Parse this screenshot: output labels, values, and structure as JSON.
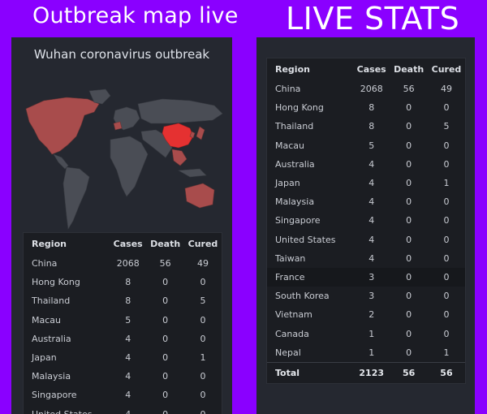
{
  "headings": {
    "left": "Outbreak map live",
    "right": "LIVE STATS"
  },
  "map": {
    "title": "Wuhan coronavirus outbreak",
    "colors": {
      "land": "#4a4d55",
      "affected": "#a84c4c",
      "focus": "#e53131"
    }
  },
  "table": {
    "headers": {
      "region": "Region",
      "cases": "Cases",
      "death": "Death",
      "cured": "Cured"
    },
    "rows": [
      {
        "region": "China",
        "cases": "2068",
        "death": "56",
        "cured": "49"
      },
      {
        "region": "Hong Kong",
        "cases": "8",
        "death": "0",
        "cured": "0"
      },
      {
        "region": "Thailand",
        "cases": "8",
        "death": "0",
        "cured": "5"
      },
      {
        "region": "Macau",
        "cases": "5",
        "death": "0",
        "cured": "0"
      },
      {
        "region": "Australia",
        "cases": "4",
        "death": "0",
        "cured": "0"
      },
      {
        "region": "Japan",
        "cases": "4",
        "death": "0",
        "cured": "1"
      },
      {
        "region": "Malaysia",
        "cases": "4",
        "death": "0",
        "cured": "0"
      },
      {
        "region": "Singapore",
        "cases": "4",
        "death": "0",
        "cured": "0"
      },
      {
        "region": "United States",
        "cases": "4",
        "death": "0",
        "cured": "0"
      },
      {
        "region": "Taiwan",
        "cases": "4",
        "death": "0",
        "cured": "0"
      },
      {
        "region": "France",
        "cases": "3",
        "death": "0",
        "cured": "0"
      },
      {
        "region": "South Korea",
        "cases": "3",
        "death": "0",
        "cured": "0"
      },
      {
        "region": "Vietnam",
        "cases": "2",
        "death": "0",
        "cured": "0"
      },
      {
        "region": "Canada",
        "cases": "1",
        "death": "0",
        "cured": "0"
      },
      {
        "region": "Nepal",
        "cases": "1",
        "death": "0",
        "cured": "1"
      }
    ],
    "total": {
      "region": "Total",
      "cases": "2123",
      "death": "56",
      "cured": "56"
    }
  },
  "colors": {
    "background": "#8a00ff",
    "panel": "#252830",
    "table": "#1b1d22"
  }
}
